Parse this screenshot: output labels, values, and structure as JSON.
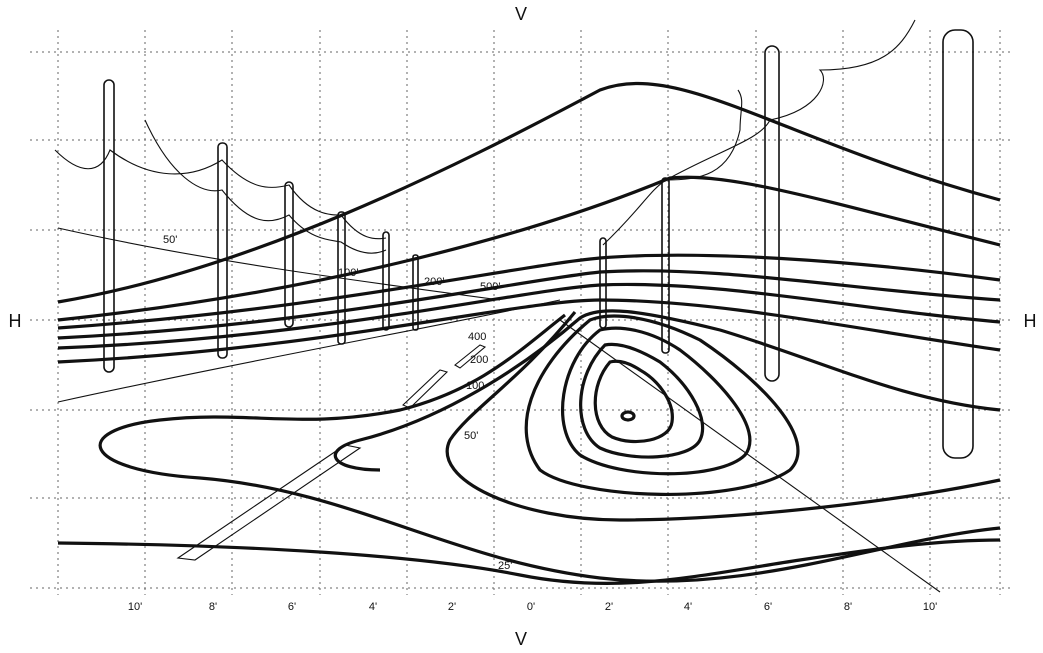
{
  "axes": {
    "top": "V",
    "bottom": "V",
    "left": "H",
    "right": "H"
  },
  "x_labels": [
    "10'",
    "8'",
    "6'",
    "4'",
    "2'",
    "0'",
    "2'",
    "4'",
    "6'",
    "8'",
    "10'"
  ],
  "distance_labels": [
    "50'",
    "100'",
    "200'",
    "500'"
  ],
  "contour_labels": [
    "400",
    "200",
    "100",
    "50'",
    "25'"
  ]
}
